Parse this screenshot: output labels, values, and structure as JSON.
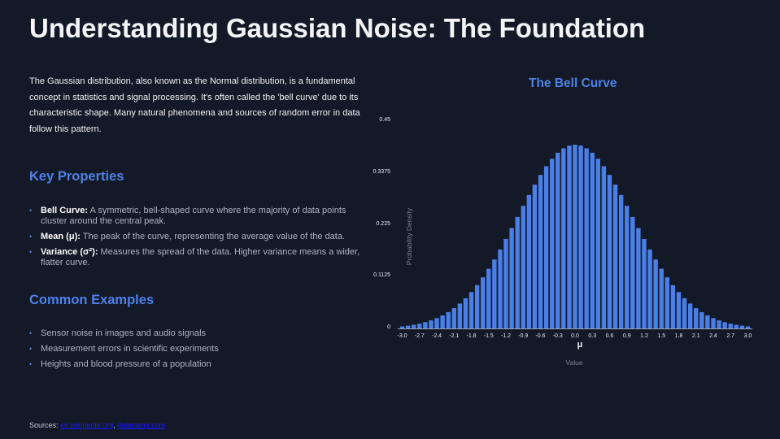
{
  "title": "Understanding Gaussian Noise: The Foundation",
  "intro": "The Gaussian distribution, also known as the Normal distribution, is a fundamental concept in statistics and signal processing. It's often called the 'bell curve' due to its characteristic shape. Many natural phenomena and sources of random error in data follow this pattern.",
  "key_properties": {
    "heading": "Key Properties",
    "items": [
      {
        "term": "Bell Curve:",
        "text": " A symmetric, bell-shaped curve where the majority of data points cluster around the central peak."
      },
      {
        "term": "Mean (μ):",
        "text": " The peak of the curve, representing the average value of the data."
      },
      {
        "term": "Variance (σ²):",
        "text": " Measures the spread of the data. Higher variance means a wider, flatter curve."
      }
    ]
  },
  "common_examples": {
    "heading": "Common Examples",
    "items": [
      "Sensor noise in images and audio signals",
      "Measurement errors in scientific experiments",
      "Heights and blood pressure of a population"
    ]
  },
  "sources": {
    "label": "Sources: ",
    "links": [
      "en.wikipedia.org",
      "datacamp.com"
    ],
    "separator": ", "
  },
  "colors": {
    "background": "#131927",
    "accent": "#4f81e6",
    "bar": "#4a7fe8"
  },
  "chart_data": {
    "type": "bar",
    "title": "The Bell Curve",
    "xlabel": "Value",
    "ylabel": "Probability Density",
    "annotation": "μ",
    "ylim": [
      0,
      0.45
    ],
    "xlim": [
      -3.0,
      3.0
    ],
    "yticks": [
      "0",
      "0.1125",
      "0.225",
      "0.3375",
      "0.45"
    ],
    "xticks": [
      "-3.0",
      "-2.7",
      "-2.4",
      "-2.1",
      "-1.8",
      "-1.5",
      "-1.2",
      "-0.9",
      "-0.6",
      "-0.3",
      "0.0",
      "0.3",
      "0.6",
      "0.9",
      "1.2",
      "1.5",
      "1.8",
      "2.1",
      "2.4",
      "2.7",
      "3.0"
    ],
    "grid": false,
    "legend": false,
    "x": [
      -3.0,
      -2.9,
      -2.8,
      -2.7,
      -2.6,
      -2.5,
      -2.4,
      -2.3,
      -2.2,
      -2.1,
      -2.0,
      -1.9,
      -1.8,
      -1.7,
      -1.6,
      -1.5,
      -1.4,
      -1.3,
      -1.2,
      -1.1,
      -1.0,
      -0.9,
      -0.8,
      -0.7,
      -0.6,
      -0.5,
      -0.4,
      -0.3,
      -0.2,
      -0.1,
      0.0,
      0.1,
      0.2,
      0.3,
      0.4,
      0.5,
      0.6,
      0.7,
      0.8,
      0.9,
      1.0,
      1.1,
      1.2,
      1.3,
      1.4,
      1.5,
      1.6,
      1.7,
      1.8,
      1.9,
      2.0,
      2.1,
      2.2,
      2.3,
      2.4,
      2.5,
      2.6,
      2.7,
      2.8,
      2.9,
      3.0
    ],
    "values": [
      0.0044,
      0.006,
      0.0079,
      0.0104,
      0.0136,
      0.0175,
      0.0224,
      0.0283,
      0.0355,
      0.044,
      0.054,
      0.0656,
      0.079,
      0.094,
      0.1109,
      0.1295,
      0.1497,
      0.1714,
      0.1942,
      0.2179,
      0.242,
      0.2661,
      0.2897,
      0.3123,
      0.3332,
      0.3521,
      0.3683,
      0.3814,
      0.391,
      0.397,
      0.3989,
      0.397,
      0.391,
      0.3814,
      0.3683,
      0.3521,
      0.3332,
      0.3123,
      0.2897,
      0.2661,
      0.242,
      0.2179,
      0.1942,
      0.1714,
      0.1497,
      0.1295,
      0.1109,
      0.094,
      0.079,
      0.0656,
      0.054,
      0.044,
      0.0355,
      0.0283,
      0.0224,
      0.0175,
      0.0136,
      0.0104,
      0.0079,
      0.006,
      0.0044
    ]
  }
}
